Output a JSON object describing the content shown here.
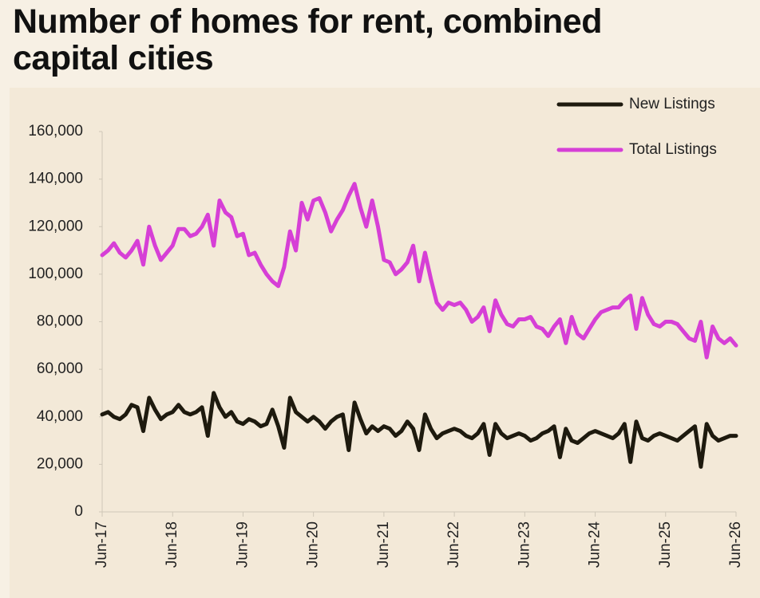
{
  "chart_data": {
    "type": "line",
    "title": "Number of homes for rent, combined capital cities",
    "categories": [
      "Jun-17",
      null,
      null,
      null,
      null,
      null,
      null,
      null,
      null,
      null,
      null,
      null,
      "Jun-18",
      null,
      null,
      null,
      null,
      null,
      null,
      null,
      null,
      null,
      null,
      null,
      "Jun-19",
      null,
      null,
      null,
      null,
      null,
      null,
      null,
      null,
      null,
      null,
      null,
      "Jun-20",
      null,
      null,
      null,
      null,
      null,
      null,
      null,
      null,
      null,
      null,
      null,
      "Jun-21",
      null,
      null,
      null,
      null,
      null,
      null,
      null,
      null,
      null,
      null,
      null,
      "Jun-22",
      null,
      null,
      null,
      null,
      null,
      null,
      null,
      null,
      null,
      null,
      null,
      "Jun-23",
      null,
      null,
      null,
      null,
      null,
      null,
      null,
      null,
      null,
      null,
      null,
      "Jun-24",
      null,
      null,
      null,
      null,
      null,
      null,
      null,
      null,
      null,
      null,
      null,
      "Jun-25",
      null,
      null,
      null,
      null,
      null,
      null,
      null,
      null,
      null,
      null,
      null,
      "Jun-26"
    ],
    "series": [
      {
        "name": "New Listings",
        "color": "#1e1a0e",
        "values": [
          41000,
          42000,
          40000,
          39000,
          41000,
          45000,
          44000,
          34000,
          48000,
          43000,
          39000,
          41000,
          42000,
          45000,
          42000,
          41000,
          42000,
          44000,
          32000,
          50000,
          44000,
          40000,
          42000,
          38000,
          37000,
          39000,
          38000,
          36000,
          37000,
          43000,
          36000,
          27000,
          48000,
          42000,
          40000,
          38000,
          40000,
          38000,
          35000,
          38000,
          40000,
          41000,
          26000,
          46000,
          39000,
          33000,
          36000,
          34000,
          36000,
          35000,
          32000,
          34000,
          38000,
          35000,
          26000,
          41000,
          35000,
          31000,
          33000,
          34000,
          35000,
          34000,
          32000,
          31000,
          33000,
          37000,
          24000,
          37000,
          33000,
          31000,
          32000,
          33000,
          32000,
          30000,
          31000,
          33000,
          34000,
          36000,
          23000,
          35000,
          30000,
          29000,
          31000,
          33000,
          34000,
          33000,
          32000,
          31000,
          33000,
          37000,
          21000,
          38000,
          31000,
          30000,
          32000,
          33000,
          32000,
          31000,
          30000,
          32000,
          34000,
          36000,
          19000,
          37000,
          32000,
          30000,
          31000,
          32000,
          32000
        ]
      },
      {
        "name": "Total Listings",
        "color": "#d63fd6",
        "values": [
          108000,
          110000,
          113000,
          109000,
          107000,
          110000,
          114000,
          104000,
          120000,
          112000,
          106000,
          109000,
          112000,
          119000,
          119000,
          116000,
          117000,
          120000,
          125000,
          112000,
          131000,
          126000,
          124000,
          116000,
          117000,
          108000,
          109000,
          104000,
          100000,
          97000,
          95000,
          103000,
          118000,
          110000,
          130000,
          123000,
          131000,
          132000,
          126000,
          118000,
          123000,
          127000,
          133000,
          138000,
          128000,
          120000,
          131000,
          120000,
          106000,
          105000,
          100000,
          102000,
          105000,
          112000,
          97000,
          109000,
          98000,
          88000,
          85000,
          88000,
          87000,
          88000,
          85000,
          80000,
          82000,
          86000,
          76000,
          89000,
          83000,
          79000,
          78000,
          81000,
          81000,
          82000,
          78000,
          77000,
          74000,
          78000,
          81000,
          71000,
          82000,
          75000,
          73000,
          77000,
          81000,
          84000,
          85000,
          86000,
          86000,
          89000,
          91000,
          77000,
          90000,
          83000,
          79000,
          78000,
          80000,
          80000,
          79000,
          76000,
          73000,
          72000,
          80000,
          65000,
          78000,
          73000,
          71000,
          73000,
          70000
        ]
      }
    ],
    "ylim": [
      0,
      160000
    ],
    "yticks": [
      0,
      {
        "value": 20000,
        "label": "20,000"
      },
      {
        "value": 40000,
        "label": "40,000"
      },
      {
        "value": 60000,
        "label": "60,000"
      },
      {
        "value": 80000,
        "label": "80,000"
      },
      {
        "value": 100000,
        "label": "100,000"
      },
      {
        "value": 120000,
        "label": "120,000"
      },
      {
        "value": 140000,
        "label": "140,000"
      },
      {
        "value": 160000,
        "label": "160,000"
      }
    ],
    "grid": false,
    "legend": "top-right"
  }
}
